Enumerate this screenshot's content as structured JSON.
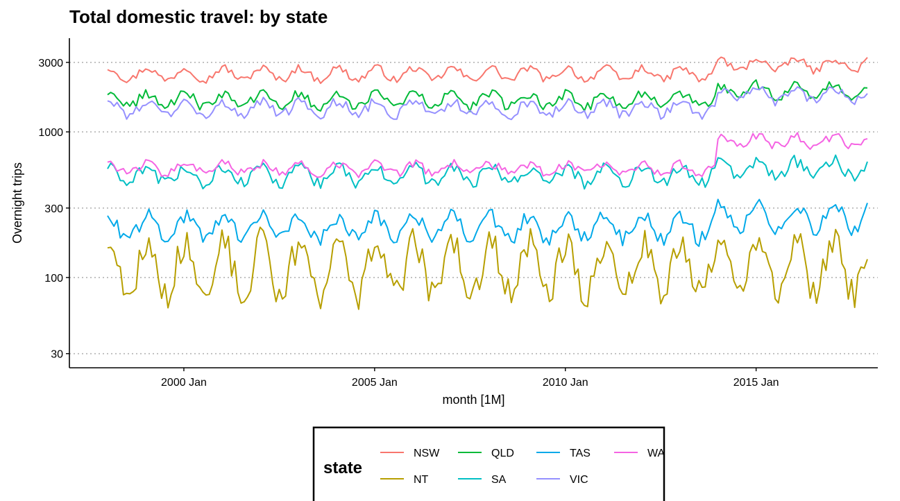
{
  "chart_data": {
    "type": "line",
    "title": "Total domestic travel: by state",
    "xlabel": "month [1M]",
    "ylabel": "Overnight trips",
    "x_start": "1998 Jan",
    "x_end": "2017 Dec",
    "x_ticks": [
      "2000 Jan",
      "2005 Jan",
      "2010 Jan",
      "2015 Jan"
    ],
    "y_scale": "log",
    "y_ticks": [
      30,
      100,
      300,
      1000,
      3000
    ],
    "y_tick_labels": [
      "30",
      "100",
      "300",
      "1000",
      "3000"
    ],
    "ylim": [
      24,
      4400
    ],
    "grid": "horizontal dotted",
    "legend": {
      "title": "state",
      "position": "bottom",
      "items": [
        "NSW",
        "QLD",
        "TAS",
        "WA",
        "NT",
        "SA",
        "VIC"
      ]
    },
    "series": [
      {
        "name": "NSW",
        "color": "#F8766D",
        "mean": 2500,
        "season_amp": 0.15,
        "noise": 0.06,
        "late_level": 2900,
        "late_from_year": 2014
      },
      {
        "name": "NT",
        "color": "#B79F00",
        "mean": 115,
        "season_amp": 0.65,
        "noise": 0.25,
        "late_level": 120,
        "late_from_year": 2014
      },
      {
        "name": "QLD",
        "color": "#00BA38",
        "mean": 1650,
        "season_amp": 0.16,
        "noise": 0.08,
        "late_level": 1900,
        "late_from_year": 2014
      },
      {
        "name": "SA",
        "color": "#00BFC4",
        "mean": 500,
        "season_amp": 0.18,
        "noise": 0.1,
        "late_level": 560,
        "late_from_year": 2014
      },
      {
        "name": "TAS",
        "color": "#00A9E9",
        "mean": 220,
        "season_amp": 0.28,
        "noise": 0.12,
        "late_level": 260,
        "late_from_year": 2014
      },
      {
        "name": "VIC",
        "color": "#9590FF",
        "mean": 1450,
        "season_amp": 0.16,
        "noise": 0.08,
        "late_level": 1800,
        "late_from_year": 2014
      },
      {
        "name": "WA",
        "color": "#F564E3",
        "mean": 560,
        "season_amp": 0.12,
        "noise": 0.07,
        "late_level": 860,
        "late_from_year": 2014
      }
    ]
  }
}
